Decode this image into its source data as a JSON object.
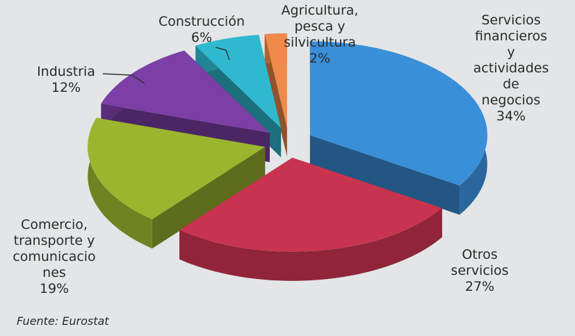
{
  "chart_data": {
    "type": "pie",
    "categories": [
      "Servicios\nfinancieros y\nactividades\nde negocios",
      "Otros\nservicios",
      "Comercio,\ntransporte y\ncomunicacio\nnes",
      "Industria",
      "Construcción",
      "Agricultura,\npesca y\nsilvicultura"
    ],
    "values": [
      34,
      27,
      19,
      12,
      6,
      2
    ],
    "value_labels": [
      "34%",
      "27%",
      "19%",
      "12%",
      "6%",
      "2%"
    ],
    "colors": [
      "#3a8fd9",
      "#c8344f",
      "#9bb52f",
      "#7b3fa6",
      "#2fb9cf",
      "#f0894a"
    ],
    "source": "Fuente: Eurostat"
  }
}
